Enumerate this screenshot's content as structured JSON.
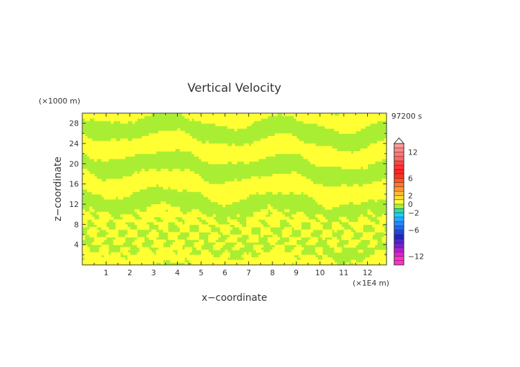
{
  "chart_data": {
    "type": "heatmap",
    "title": "Vertical Velocity",
    "xlabel": "x−coordinate",
    "ylabel": "z−coordinate",
    "x_unit": "(×1E4 m)",
    "y_unit": "(×1000 m)",
    "time_label": "97200 s",
    "xlim": [
      0,
      12.8
    ],
    "ylim": [
      0,
      30
    ],
    "x_ticks": [
      1,
      2,
      3,
      4,
      5,
      6,
      7,
      8,
      9,
      10,
      11,
      12
    ],
    "y_ticks": [
      4,
      8,
      12,
      16,
      20,
      24,
      28
    ],
    "x_tick_labels": [
      "1",
      "2",
      "3",
      "4",
      "5",
      "6",
      "7",
      "8",
      "9",
      "10",
      "11",
      "12"
    ],
    "y_tick_labels": [
      "4",
      "8",
      "12",
      "16",
      "20",
      "24",
      "28"
    ],
    "colors": {
      "positive_small": "#ffff33",
      "negative_small": "#aaee33"
    },
    "colorbar": {
      "levels": [
        -14,
        -13,
        -12,
        -11,
        -10,
        -9,
        -8,
        -7,
        -6,
        -5,
        -4,
        -3,
        -2,
        -1,
        0,
        1,
        2,
        3,
        4,
        5,
        6,
        7,
        8,
        9,
        10,
        11,
        12,
        13,
        14
      ],
      "colors": [
        "#ff33cc",
        "#ff33cc",
        "#dd22cc",
        "#aa22cc",
        "#7722cc",
        "#5522cc",
        "#2222cc",
        "#2244dd",
        "#2266ee",
        "#2288ff",
        "#22aaff",
        "#22ccff",
        "#22ddbb",
        "#aaee33",
        "#ffff33",
        "#ffdd33",
        "#ffbb33",
        "#ff9933",
        "#ff7733",
        "#ff5522",
        "#ff3322",
        "#ff2222",
        "#ff3333",
        "#ff4444",
        "#ff6666",
        "#ff7777",
        "#ff8888",
        "#ff9999"
      ],
      "tick_values": [
        12,
        6,
        2,
        0,
        -2,
        -6,
        -12
      ],
      "tick_labels": [
        "12",
        "6",
        "2",
        "0",
        "−2",
        "−6",
        "−12"
      ],
      "top_arrow": true
    }
  }
}
